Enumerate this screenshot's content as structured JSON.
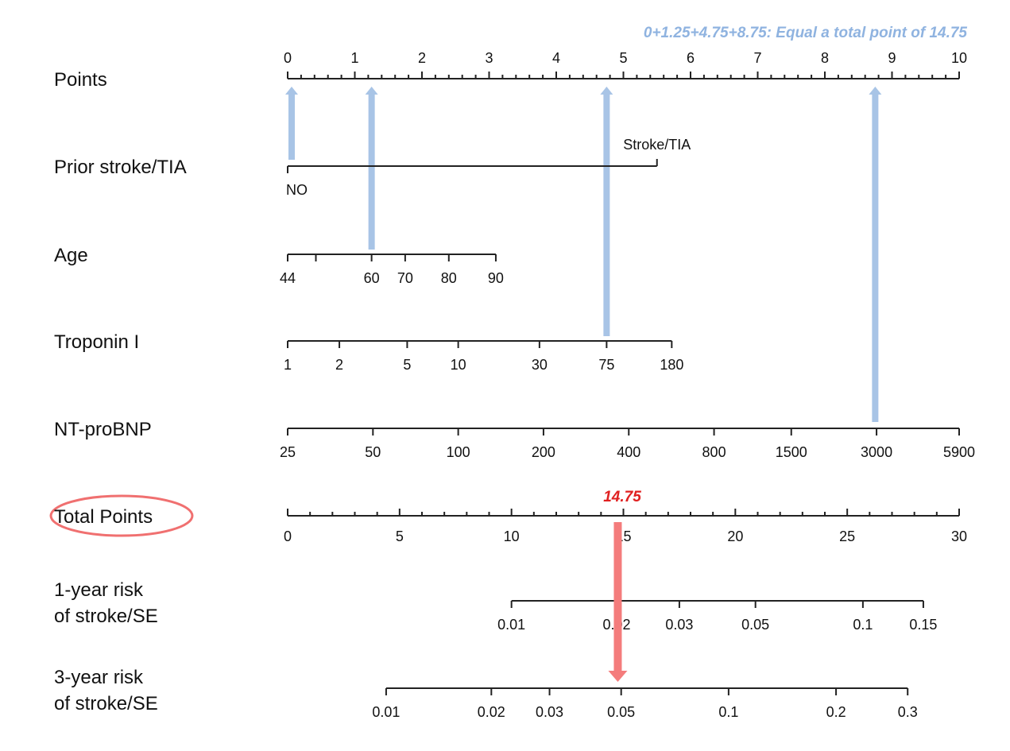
{
  "annotation": {
    "sum_text": "0+1.25+4.75+8.75: Equal a total point of 14.75",
    "total_value_text": "14.75",
    "sum_color": "#8fb3e0",
    "total_color": "#e02020",
    "arrow_color": "#a8c4e6",
    "total_arrow_color": "#f47c7c",
    "circle_color": "#f07070"
  },
  "chart_data": {
    "type": "nomogram",
    "points_scale": {
      "label": "Points",
      "range": [
        0,
        10
      ],
      "major_ticks": [
        "0",
        "1",
        "2",
        "3",
        "4",
        "5",
        "6",
        "7",
        "8",
        "9",
        "10"
      ],
      "minor_step": 0.2
    },
    "variables": [
      {
        "label": "Prior stroke/TIA",
        "categories": [
          {
            "name": "NO",
            "points": 0
          },
          {
            "name": "Stroke/TIA",
            "points": 5.5
          }
        ]
      },
      {
        "label": "Age",
        "ticks": [
          {
            "label": "44",
            "points": 0
          },
          {
            "label": "",
            "points": 0.42
          },
          {
            "label": "60",
            "points": 1.25
          },
          {
            "label": "70",
            "points": 1.75
          },
          {
            "label": "80",
            "points": 2.4
          },
          {
            "label": "90",
            "points": 3.1
          }
        ]
      },
      {
        "label": "Troponin I",
        "ticks": [
          {
            "label": "1",
            "points": 0
          },
          {
            "label": "2",
            "points": 0.77
          },
          {
            "label": "5",
            "points": 1.78
          },
          {
            "label": "10",
            "points": 2.54
          },
          {
            "label": "30",
            "points": 3.75
          },
          {
            "label": "75",
            "points": 4.75
          },
          {
            "label": "180",
            "points": 5.72
          }
        ]
      },
      {
        "label": "NT-proBNP",
        "ticks": [
          {
            "label": "25",
            "points": 0
          },
          {
            "label": "50",
            "points": 1.27
          },
          {
            "label": "100",
            "points": 2.54
          },
          {
            "label": "200",
            "points": 3.81
          },
          {
            "label": "400",
            "points": 5.08
          },
          {
            "label": "800",
            "points": 6.35
          },
          {
            "label": "1500",
            "points": 7.5
          },
          {
            "label": "3000",
            "points": 8.77
          },
          {
            "label": "5900",
            "points": 10
          }
        ]
      }
    ],
    "total_points_scale": {
      "label": "Total Points",
      "range": [
        0,
        30
      ],
      "major_ticks": [
        "0",
        "5",
        "10",
        "15",
        "20",
        "25",
        "30"
      ],
      "minor_step": 1
    },
    "risk_scales": [
      {
        "label_lines": [
          "1-year risk",
          "of stroke/SE"
        ],
        "ticks": [
          {
            "label": "0.01",
            "total": 10
          },
          {
            "label": "0.02",
            "total": 14.7
          },
          {
            "label": "0.03",
            "total": 17.5
          },
          {
            "label": "0.05",
            "total": 20.9
          },
          {
            "label": "0.1",
            "total": 25.7
          },
          {
            "label": "0.15",
            "total": 28.4
          }
        ]
      },
      {
        "label_lines": [
          "3-year risk",
          "of stroke/SE"
        ],
        "ticks": [
          {
            "label": "0.01",
            "total": 4.4
          },
          {
            "label": "0.02",
            "total": 9.1
          },
          {
            "label": "0.03",
            "total": 11.7
          },
          {
            "label": "0.05",
            "total": 14.9
          },
          {
            "label": "0.1",
            "total": 19.7
          },
          {
            "label": "0.2",
            "total": 24.5
          },
          {
            "label": "0.3",
            "total": 27.7
          }
        ]
      }
    ],
    "example": {
      "contributions": [
        0,
        1.25,
        4.75,
        8.75
      ],
      "total": 14.75
    }
  }
}
